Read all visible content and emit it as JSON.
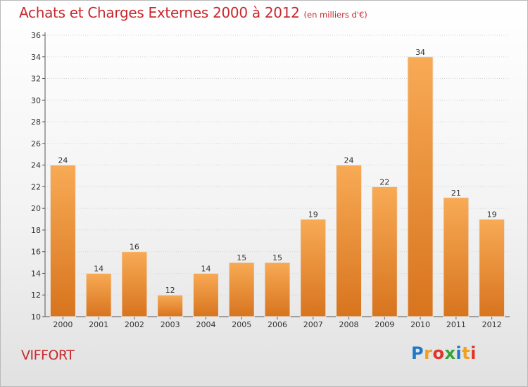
{
  "header": {
    "title": "Achats et Charges Externes 2000 à 2012",
    "subtitle": "(en milliers d'€)"
  },
  "footer": {
    "commune": "VIFFORT",
    "logo_letters": [
      {
        "ch": "P",
        "color": "#1f78c8"
      },
      {
        "ch": "r",
        "color": "#f0a020"
      },
      {
        "ch": "o",
        "color": "#e0342a"
      },
      {
        "ch": "x",
        "color": "#33a532"
      },
      {
        "ch": "i",
        "color": "#1f78c8"
      },
      {
        "ch": "t",
        "color": "#f0a020"
      },
      {
        "ch": "i",
        "color": "#e0342a"
      }
    ]
  },
  "chart_data": {
    "type": "bar",
    "title": "Achats et Charges Externes 2000 à 2012",
    "subtitle": "(en milliers d'€)",
    "categories": [
      "2000",
      "2001",
      "2002",
      "2003",
      "2004",
      "2005",
      "2006",
      "2007",
      "2008",
      "2009",
      "2010",
      "2011",
      "2012"
    ],
    "values": [
      24,
      14,
      16,
      12,
      14,
      15,
      15,
      19,
      24,
      22,
      34,
      21,
      19
    ],
    "ylim": [
      10,
      36
    ],
    "yticks": [
      10,
      12,
      14,
      16,
      18,
      20,
      22,
      24,
      26,
      28,
      30,
      32,
      34,
      36
    ],
    "grid": true,
    "bar_color_top": "#f8aa55",
    "bar_color_bottom": "#d8741e"
  }
}
